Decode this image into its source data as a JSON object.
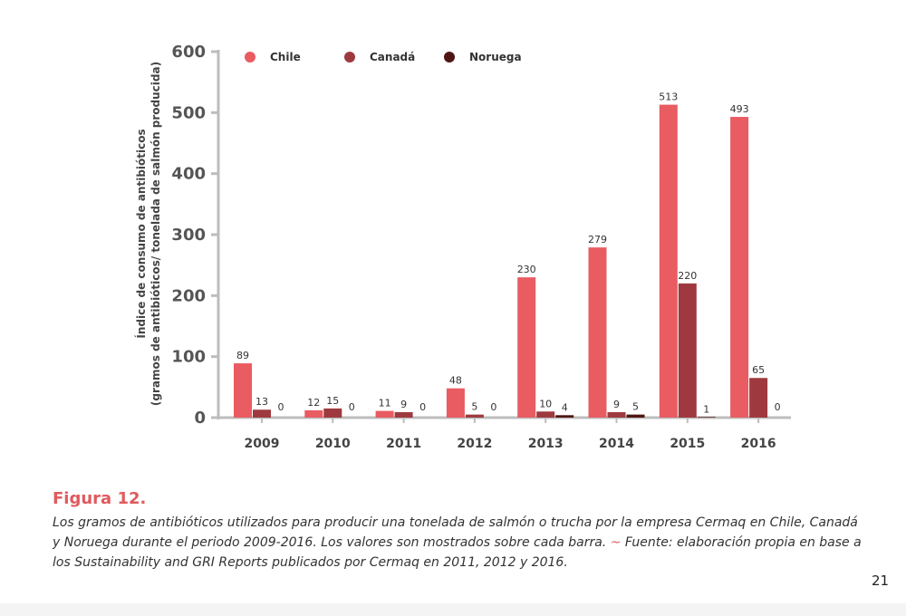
{
  "chart_data": {
    "type": "bar",
    "categories": [
      "2009",
      "2010",
      "2011",
      "2012",
      "2013",
      "2014",
      "2015",
      "2016"
    ],
    "series": [
      {
        "name": "Chile",
        "values": [
          89,
          12,
          11,
          48,
          230,
          279,
          513,
          493
        ],
        "color": "#e85c62"
      },
      {
        "name": "Canadá",
        "values": [
          13,
          15,
          9,
          5,
          10,
          9,
          220,
          65
        ],
        "color": "#9e3a3f"
      },
      {
        "name": "Noruega",
        "values": [
          0,
          0,
          0,
          0,
          4,
          5,
          1,
          0
        ],
        "color": "#4e1613"
      }
    ],
    "ylabel_line1": "Índice de consumo de antibióticos",
    "ylabel_line2": "(gramos de antibióticos/ tonelada de salmón producida)",
    "ylim": [
      0,
      600
    ],
    "yticks": [
      "0",
      "100",
      "200",
      "300",
      "400",
      "500",
      "600"
    ],
    "legend_position": "top",
    "grid": false
  },
  "caption": {
    "title": "Figura 12.",
    "text": "Los gramos de antibióticos utilizados para producir una tonelada de salmón o trucha por la empresa Cermaq en Chile, Canadá y Noruega durante el periodo 2009-2016. Los valores son mostrados sobre cada barra.",
    "tilde": "~",
    "source": "Fuente: elaboración propia en base a los Sustainability and GRI Reports publicados por Cermaq en 2011, 2012 y 2016."
  },
  "page_number": "21"
}
